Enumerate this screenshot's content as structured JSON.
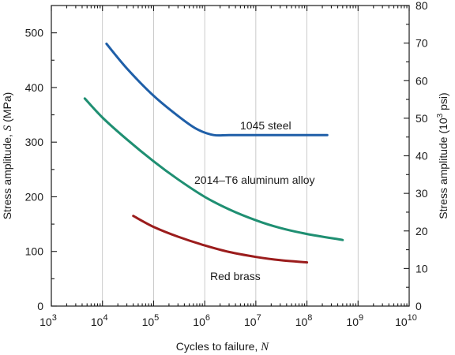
{
  "chart_data": {
    "type": "line",
    "xlabel": "Cycles to failure, ",
    "xlabel_symbol": "N",
    "ylabel": "Stress amplitude, ",
    "ylabel_symbol": "S",
    "ylabel_unit": " (MPa)",
    "y2label": "Stress amplitude (10",
    "y2label_sup": "3",
    "y2label_end": " psi)",
    "x_scale": "log",
    "xlim": [
      1000,
      10000000000
    ],
    "ylim": [
      0,
      550
    ],
    "y2lim": [
      0,
      80
    ],
    "grid": "vertical major gridlines",
    "x_ticks": [
      {
        "value": 1000,
        "base": "10",
        "exp": "3"
      },
      {
        "value": 10000,
        "base": "10",
        "exp": "4"
      },
      {
        "value": 100000,
        "base": "10",
        "exp": "5"
      },
      {
        "value": 1000000,
        "base": "10",
        "exp": "6"
      },
      {
        "value": 10000000,
        "base": "10",
        "exp": "7"
      },
      {
        "value": 100000000,
        "base": "10",
        "exp": "8"
      },
      {
        "value": 1000000000,
        "base": "10",
        "exp": "9"
      },
      {
        "value": 10000000000,
        "base": "10",
        "exp": "10"
      }
    ],
    "y_ticks": [
      0,
      100,
      200,
      300,
      400,
      500
    ],
    "y2_ticks": [
      0,
      10,
      20,
      30,
      40,
      50,
      60,
      70,
      80
    ],
    "series": [
      {
        "name": "1045 steel",
        "color": "#1f5fa8",
        "points": [
          [
            12000,
            480
          ],
          [
            30000,
            435
          ],
          [
            100000,
            385
          ],
          [
            300000,
            348
          ],
          [
            700000,
            324
          ],
          [
            1500000,
            313
          ],
          [
            3000000,
            313
          ],
          [
            10000000,
            313
          ],
          [
            100000000,
            313
          ],
          [
            250000000,
            313
          ]
        ]
      },
      {
        "name": "2014–T6 aluminum alloy",
        "color": "#1f8f72",
        "points": [
          [
            4500,
            380
          ],
          [
            10000,
            345
          ],
          [
            30000,
            305
          ],
          [
            100000,
            265
          ],
          [
            300000,
            232
          ],
          [
            1000000,
            200
          ],
          [
            3000000,
            177
          ],
          [
            10000000,
            157
          ],
          [
            30000000,
            143
          ],
          [
            100000000,
            132
          ],
          [
            500000000,
            121
          ]
        ]
      },
      {
        "name": "Red brass",
        "color": "#9b1c1c",
        "points": [
          [
            40000,
            165
          ],
          [
            100000,
            145
          ],
          [
            300000,
            127
          ],
          [
            1000000,
            111
          ],
          [
            3000000,
            99
          ],
          [
            10000000,
            90
          ],
          [
            30000000,
            84
          ],
          [
            100000000,
            80
          ]
        ]
      }
    ]
  }
}
